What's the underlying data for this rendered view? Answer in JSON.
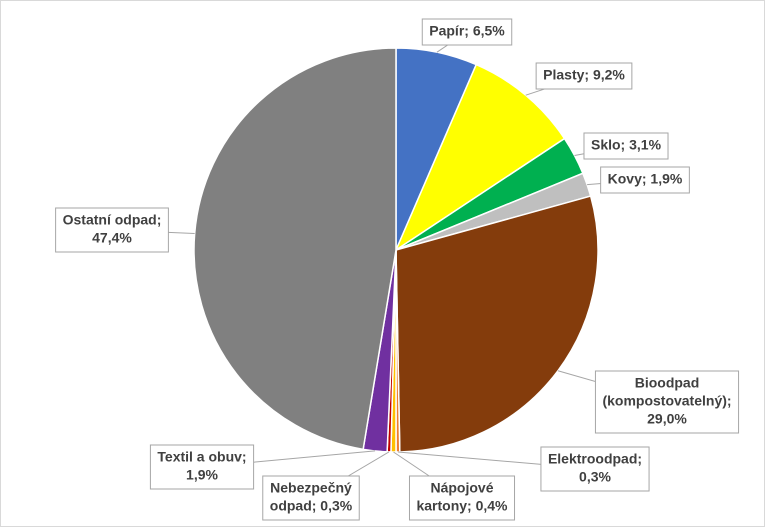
{
  "chart_data": {
    "type": "pie",
    "values": [
      6.5,
      9.2,
      3.1,
      1.9,
      29.0,
      0.3,
      0.4,
      0.3,
      1.9,
      47.4
    ],
    "value_labels": [
      [
        "Papír; 6,5%"
      ],
      [
        "Plasty; 9,2%"
      ],
      [
        "Sklo; 3,1%"
      ],
      [
        "Kovy; 1,9%"
      ],
      [
        "Bioodpad",
        "(kompostovatelný);",
        "29,0%"
      ],
      [
        "Elektroodpad;",
        "0,3%"
      ],
      [
        "Nápojové",
        "kartony; 0,4%"
      ],
      [
        "Nebezpečný",
        "odpad; 0,3%"
      ],
      [
        "Textil a obuv;",
        "1,9%"
      ],
      [
        "Ostatní odpad;",
        "47,4%"
      ]
    ],
    "colors": [
      "#4472c4",
      "#ffff00",
      "#00b050",
      "#bfbfbf",
      "#843c0c",
      "#ed7d31",
      "#ffc000",
      "#c00000",
      "#7030a0",
      "#808080"
    ]
  }
}
